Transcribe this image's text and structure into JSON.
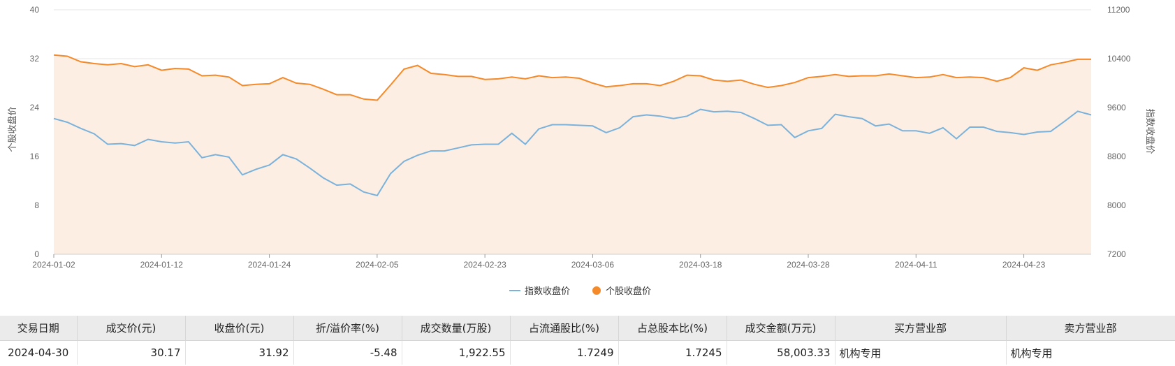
{
  "chart_data": {
    "type": "line",
    "y_left": {
      "title": "个股收盘价",
      "min": 0,
      "max": 40,
      "ticks": [
        "0",
        "8",
        "16",
        "24",
        "32",
        "40"
      ]
    },
    "y_right": {
      "title": "指数收盘价",
      "min": 7200,
      "max": 11200,
      "ticks": [
        "7200",
        "8000",
        "8800",
        "9600",
        "10400",
        "11200"
      ]
    },
    "x_tick_labels": [
      "2024-01-02",
      "2024-01-12",
      "2024-01-24",
      "2024-02-05",
      "2024-02-23",
      "2024-03-06",
      "2024-03-18",
      "2024-03-28",
      "2024-04-11",
      "2024-04-23"
    ],
    "x_tick_index": [
      0,
      8,
      16,
      24,
      32,
      40,
      48,
      56,
      64,
      72
    ],
    "dates": [
      "2024-01-02",
      "2024-01-03",
      "2024-01-04",
      "2024-01-05",
      "2024-01-08",
      "2024-01-09",
      "2024-01-10",
      "2024-01-11",
      "2024-01-12",
      "2024-01-15",
      "2024-01-16",
      "2024-01-17",
      "2024-01-18",
      "2024-01-19",
      "2024-01-22",
      "2024-01-23",
      "2024-01-24",
      "2024-01-25",
      "2024-01-26",
      "2024-01-29",
      "2024-01-30",
      "2024-01-31",
      "2024-02-01",
      "2024-02-02",
      "2024-02-05",
      "2024-02-06",
      "2024-02-07",
      "2024-02-08",
      "2024-02-19",
      "2024-02-20",
      "2024-02-21",
      "2024-02-22",
      "2024-02-23",
      "2024-02-26",
      "2024-02-27",
      "2024-02-28",
      "2024-02-29",
      "2024-03-01",
      "2024-03-04",
      "2024-03-05",
      "2024-03-06",
      "2024-03-07",
      "2024-03-08",
      "2024-03-11",
      "2024-03-12",
      "2024-03-13",
      "2024-03-14",
      "2024-03-15",
      "2024-03-18",
      "2024-03-19",
      "2024-03-20",
      "2024-03-21",
      "2024-03-22",
      "2024-03-25",
      "2024-03-26",
      "2024-03-27",
      "2024-03-28",
      "2024-03-29",
      "2024-04-01",
      "2024-04-02",
      "2024-04-03",
      "2024-04-08",
      "2024-04-09",
      "2024-04-10",
      "2024-04-11",
      "2024-04-12",
      "2024-04-15",
      "2024-04-16",
      "2024-04-17",
      "2024-04-18",
      "2024-04-19",
      "2024-04-22",
      "2024-04-23",
      "2024-04-24",
      "2024-04-25",
      "2024-04-26",
      "2024-04-29",
      "2024-04-30"
    ],
    "series": [
      {
        "name": "指数收盘价",
        "axis": "right",
        "color": "#7ab2dc",
        "values": [
          9420,
          9360,
          9260,
          9170,
          9000,
          9010,
          8980,
          9080,
          9040,
          9020,
          9040,
          8780,
          8830,
          8790,
          8500,
          8590,
          8660,
          8830,
          8760,
          8610,
          8450,
          8330,
          8350,
          8220,
          8160,
          8520,
          8720,
          8820,
          8890,
          8890,
          8940,
          8990,
          9000,
          9000,
          9180,
          9000,
          9250,
          9320,
          9320,
          9310,
          9300,
          9190,
          9270,
          9450,
          9480,
          9460,
          9420,
          9460,
          9570,
          9530,
          9540,
          9520,
          9420,
          9310,
          9320,
          9110,
          9220,
          9260,
          9490,
          9450,
          9420,
          9300,
          9330,
          9220,
          9220,
          9180,
          9270,
          9090,
          9280,
          9280,
          9210,
          9190,
          9160,
          9200,
          9210,
          9370,
          9540,
          9480
        ]
      },
      {
        "name": "个股收盘价",
        "axis": "left",
        "color": "#f48a2a",
        "values": [
          32.6,
          32.4,
          31.5,
          31.2,
          31.0,
          31.2,
          30.7,
          31.0,
          30.1,
          30.4,
          30.3,
          29.2,
          29.3,
          29.0,
          27.6,
          27.8,
          27.9,
          28.9,
          28.0,
          27.8,
          27.0,
          26.1,
          26.1,
          25.4,
          25.2,
          27.7,
          30.3,
          30.9,
          29.6,
          29.4,
          29.1,
          29.1,
          28.6,
          28.7,
          29.0,
          28.7,
          29.2,
          28.9,
          29.0,
          28.8,
          28.0,
          27.4,
          27.6,
          27.9,
          27.9,
          27.6,
          28.3,
          29.3,
          29.2,
          28.5,
          28.3,
          28.5,
          27.8,
          27.3,
          27.6,
          28.1,
          28.9,
          29.1,
          29.4,
          29.1,
          29.2,
          29.2,
          29.5,
          29.2,
          28.9,
          29.0,
          29.4,
          28.9,
          29.0,
          28.9,
          28.3,
          28.9,
          30.5,
          30.1,
          31.0,
          31.4,
          31.9,
          31.9
        ]
      }
    ],
    "legend_position": "bottom-center",
    "grid": true,
    "area_fill": "#fdeee3"
  },
  "table": {
    "headers": [
      "交易日期",
      "成交价(元)",
      "收盘价(元)",
      "折/溢价率(%)",
      "成交数量(万股)",
      "占流通股比(%)",
      "占总股本比(%)",
      "成交金额(万元)",
      "买方营业部",
      "卖方营业部"
    ],
    "rows": [
      [
        "2024-04-30",
        "30.17",
        "31.92",
        "-5.48",
        "1,922.55",
        "1.7249",
        "1.7245",
        "58,003.33",
        "机构专用",
        "机构专用"
      ]
    ]
  }
}
